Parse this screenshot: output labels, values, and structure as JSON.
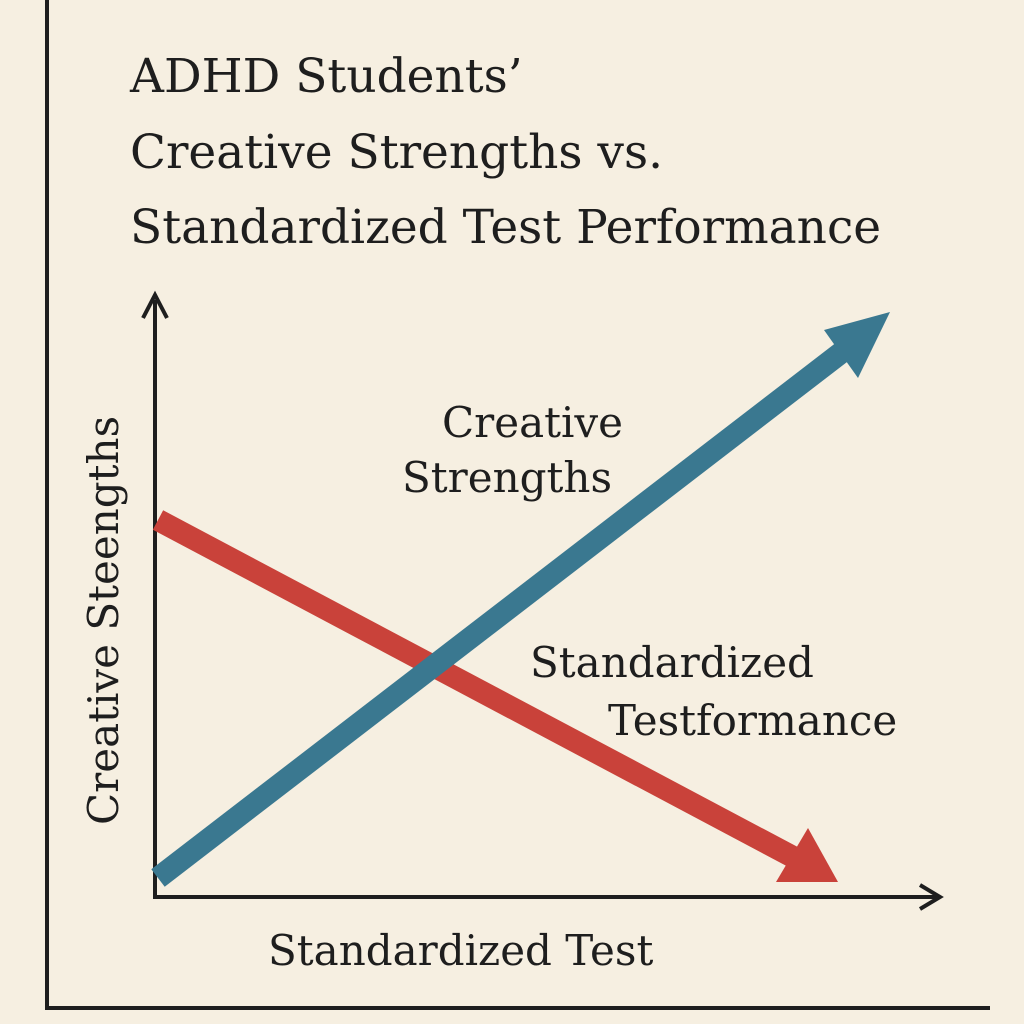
{
  "title": {
    "lines": [
      "ADHD Students’",
      "Creative Strengths vs.",
      "Standardized Test Performance"
    ]
  },
  "axes": {
    "y_label": "Creative Steengths",
    "x_label": "Standardized Test"
  },
  "labels": [
    {
      "lines": [
        "Creative",
        "Strengths"
      ]
    },
    {
      "lines": [
        "Standardized",
        "Testformance"
      ]
    }
  ]
}
